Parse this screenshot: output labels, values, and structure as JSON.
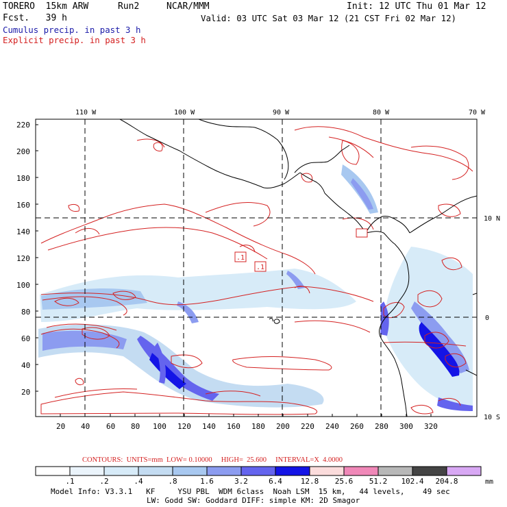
{
  "header": {
    "model": "TORERO  15km ARW",
    "run": "Run2",
    "org": "NCAR/MMM",
    "init": "Init: 12 UTC Thu 01 Mar 12",
    "fcst": "Fcst.   39 h",
    "valid": "Valid: 03 UTC Sat 03 Mar 12 (21 CST Fri 02 Mar 12)",
    "cumulus_label": "Cumulus precip. in past 3 h",
    "explicit_label": "Explicit precip. in past 3 h",
    "cumulus_color": "#1a1aa8",
    "explicit_color": "#d42020"
  },
  "map": {
    "lon_labels": [
      "110 W",
      "100 W",
      "90 W",
      "80 W",
      "70 W"
    ],
    "lat_labels": [
      "10 N",
      "0",
      "10 S"
    ],
    "y_ticks": [
      "220",
      "200",
      "180",
      "160",
      "140",
      "120",
      "100",
      "80",
      "60",
      "40",
      "20"
    ],
    "x_ticks": [
      "20",
      "40",
      "60",
      "80",
      "100",
      "120",
      "140",
      "160",
      "180",
      "200",
      "220",
      "240",
      "260",
      "280",
      "300",
      "320"
    ],
    "contour_marks": [
      ".1",
      ".1"
    ]
  },
  "contours_info": {
    "text": "CONTOURS:  UNITS=mm  LOW= 0.10000     HIGH=  25.600     INTERVAL=X  4.0000"
  },
  "colorbar": {
    "labels": [
      ".1",
      ".2",
      ".4",
      ".8",
      "1.6",
      "3.2",
      "6.4",
      "12.8",
      "25.6",
      "51.2",
      "102.4",
      "204.8"
    ],
    "unit": "mm",
    "colors": [
      "#ffffff",
      "#ebf4fb",
      "#d7ebf8",
      "#c4dcf2",
      "#a8c8f0",
      "#8c9cf0",
      "#6464ee",
      "#1414e6",
      "#fbdcdc",
      "#f088b8",
      "#b8b8b8",
      "#444444",
      "#d8a8f4"
    ]
  },
  "footer": {
    "line1": "Model Info: V3.3.1   KF     YSU PBL  WDM 6class  Noah LSM  15 km,   44 levels,    49 sec",
    "line2": "LW: Godd SW: Goddard DIFF: simple KM: 2D Smagor"
  }
}
